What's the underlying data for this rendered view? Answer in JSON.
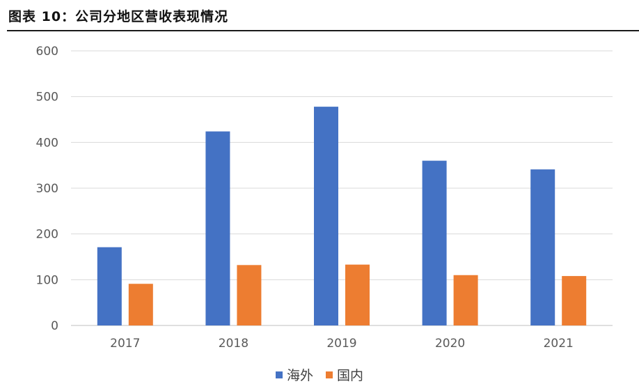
{
  "title": "图表 10：公司分地区营收表现情况",
  "chart_data": {
    "type": "bar",
    "title": "",
    "xlabel": "",
    "ylabel": "",
    "categories": [
      "2017",
      "2018",
      "2019",
      "2020",
      "2021"
    ],
    "series": [
      {
        "name": "海外",
        "color": "#4472C4",
        "values": [
          171,
          424,
          478,
          360,
          341
        ]
      },
      {
        "name": "国内",
        "color": "#ED7D31",
        "values": [
          91,
          132,
          133,
          110,
          108
        ]
      }
    ],
    "ylim": [
      0,
      600
    ],
    "yticks": [
      0,
      100,
      200,
      300,
      400,
      500,
      600
    ],
    "grid": true,
    "legend": "bottom-center"
  }
}
